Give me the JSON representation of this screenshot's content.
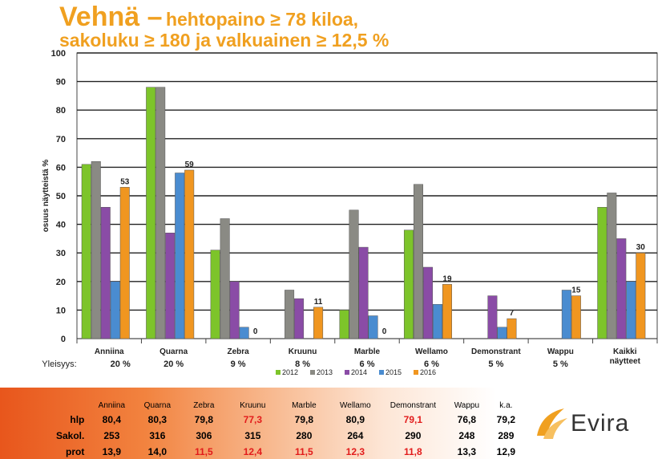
{
  "title_big": "Vehnä –",
  "title_rest": "hehtopaino ≥ 78 kiloa,",
  "title_line2": "sakoluku ≥ 180 ja valkuainen ≥ 12,5 %",
  "colors": {
    "2012": "#7dc42a",
    "2013": "#8a8a84",
    "2014": "#8a4ca6",
    "2015": "#4a8cd0",
    "2016": "#f09620",
    "title": "#f0a020",
    "highlight": "#e21b1b"
  },
  "chart_data": {
    "type": "bar",
    "ylabel": "osuus näytteistä %",
    "ylim": [
      0,
      100
    ],
    "yticks": [
      0,
      10,
      20,
      30,
      40,
      50,
      60,
      70,
      80,
      90,
      100
    ],
    "categories": [
      "Anniina",
      "Quarna",
      "Zebra",
      "Kruunu",
      "Marble",
      "Wellamo",
      "Demonstrant",
      "Wappu",
      "Kaikki näytteet"
    ],
    "share_label": "Yleisyys:",
    "shares": [
      "20 %",
      "20 %",
      "9 %",
      "8 %",
      "6 %",
      "6 %",
      "5 %",
      "5 %",
      ""
    ],
    "series": [
      {
        "name": "2012",
        "values": [
          61,
          88,
          31,
          null,
          10,
          38,
          null,
          null,
          46
        ]
      },
      {
        "name": "2013",
        "values": [
          62,
          88,
          42,
          17,
          45,
          54,
          null,
          null,
          51
        ]
      },
      {
        "name": "2014",
        "values": [
          46,
          37,
          20,
          14,
          32,
          25,
          15,
          null,
          35
        ]
      },
      {
        "name": "2015",
        "values": [
          20,
          58,
          4,
          null,
          8,
          12,
          4,
          17,
          20
        ]
      },
      {
        "name": "2016",
        "values": [
          53,
          59,
          0,
          11,
          0,
          19,
          7,
          15,
          30
        ]
      }
    ],
    "data_labels": [
      {
        "category": "Anniina",
        "series": "2016",
        "text": "53"
      },
      {
        "category": "Quarna",
        "series": "2016",
        "text": "59"
      },
      {
        "category": "Zebra",
        "series": "2016",
        "text": "0"
      },
      {
        "category": "Kruunu",
        "series": "2016",
        "text": "11"
      },
      {
        "category": "Marble",
        "series": "2016",
        "text": "0"
      },
      {
        "category": "Wellamo",
        "series": "2016",
        "text": "19"
      },
      {
        "category": "Demonstrant",
        "series": "2016",
        "text": "7"
      },
      {
        "category": "Wappu",
        "series": "2016",
        "text": "15"
      },
      {
        "category": "Kaikki näytteet",
        "series": "2016",
        "text": "30"
      }
    ],
    "grid": true,
    "legend_position": "bottom"
  },
  "table": {
    "columns": [
      "Anniina",
      "Quarna",
      "Zebra",
      "Kruunu",
      "Marble",
      "Wellamo",
      "Demonstrant",
      "Wappu",
      "k.a."
    ],
    "rows": [
      {
        "label": "hlp",
        "values": [
          "80,4",
          "80,3",
          "79,8",
          "77,3",
          "79,8",
          "80,9",
          "79,1",
          "76,8",
          "79,2"
        ],
        "red": [
          false,
          false,
          false,
          true,
          false,
          false,
          true,
          false,
          false
        ]
      },
      {
        "label": "Sakol.",
        "values": [
          "253",
          "316",
          "306",
          "315",
          "280",
          "264",
          "290",
          "248",
          "289"
        ],
        "red": [
          false,
          false,
          false,
          false,
          false,
          false,
          false,
          false,
          false
        ]
      },
      {
        "label": "prot",
        "values": [
          "13,9",
          "14,0",
          "11,5",
          "12,4",
          "11,5",
          "12,3",
          "11,8",
          "13,3",
          "12,9"
        ],
        "red": [
          false,
          false,
          true,
          true,
          true,
          true,
          true,
          false,
          false
        ]
      }
    ]
  },
  "logo_text": "Evira"
}
